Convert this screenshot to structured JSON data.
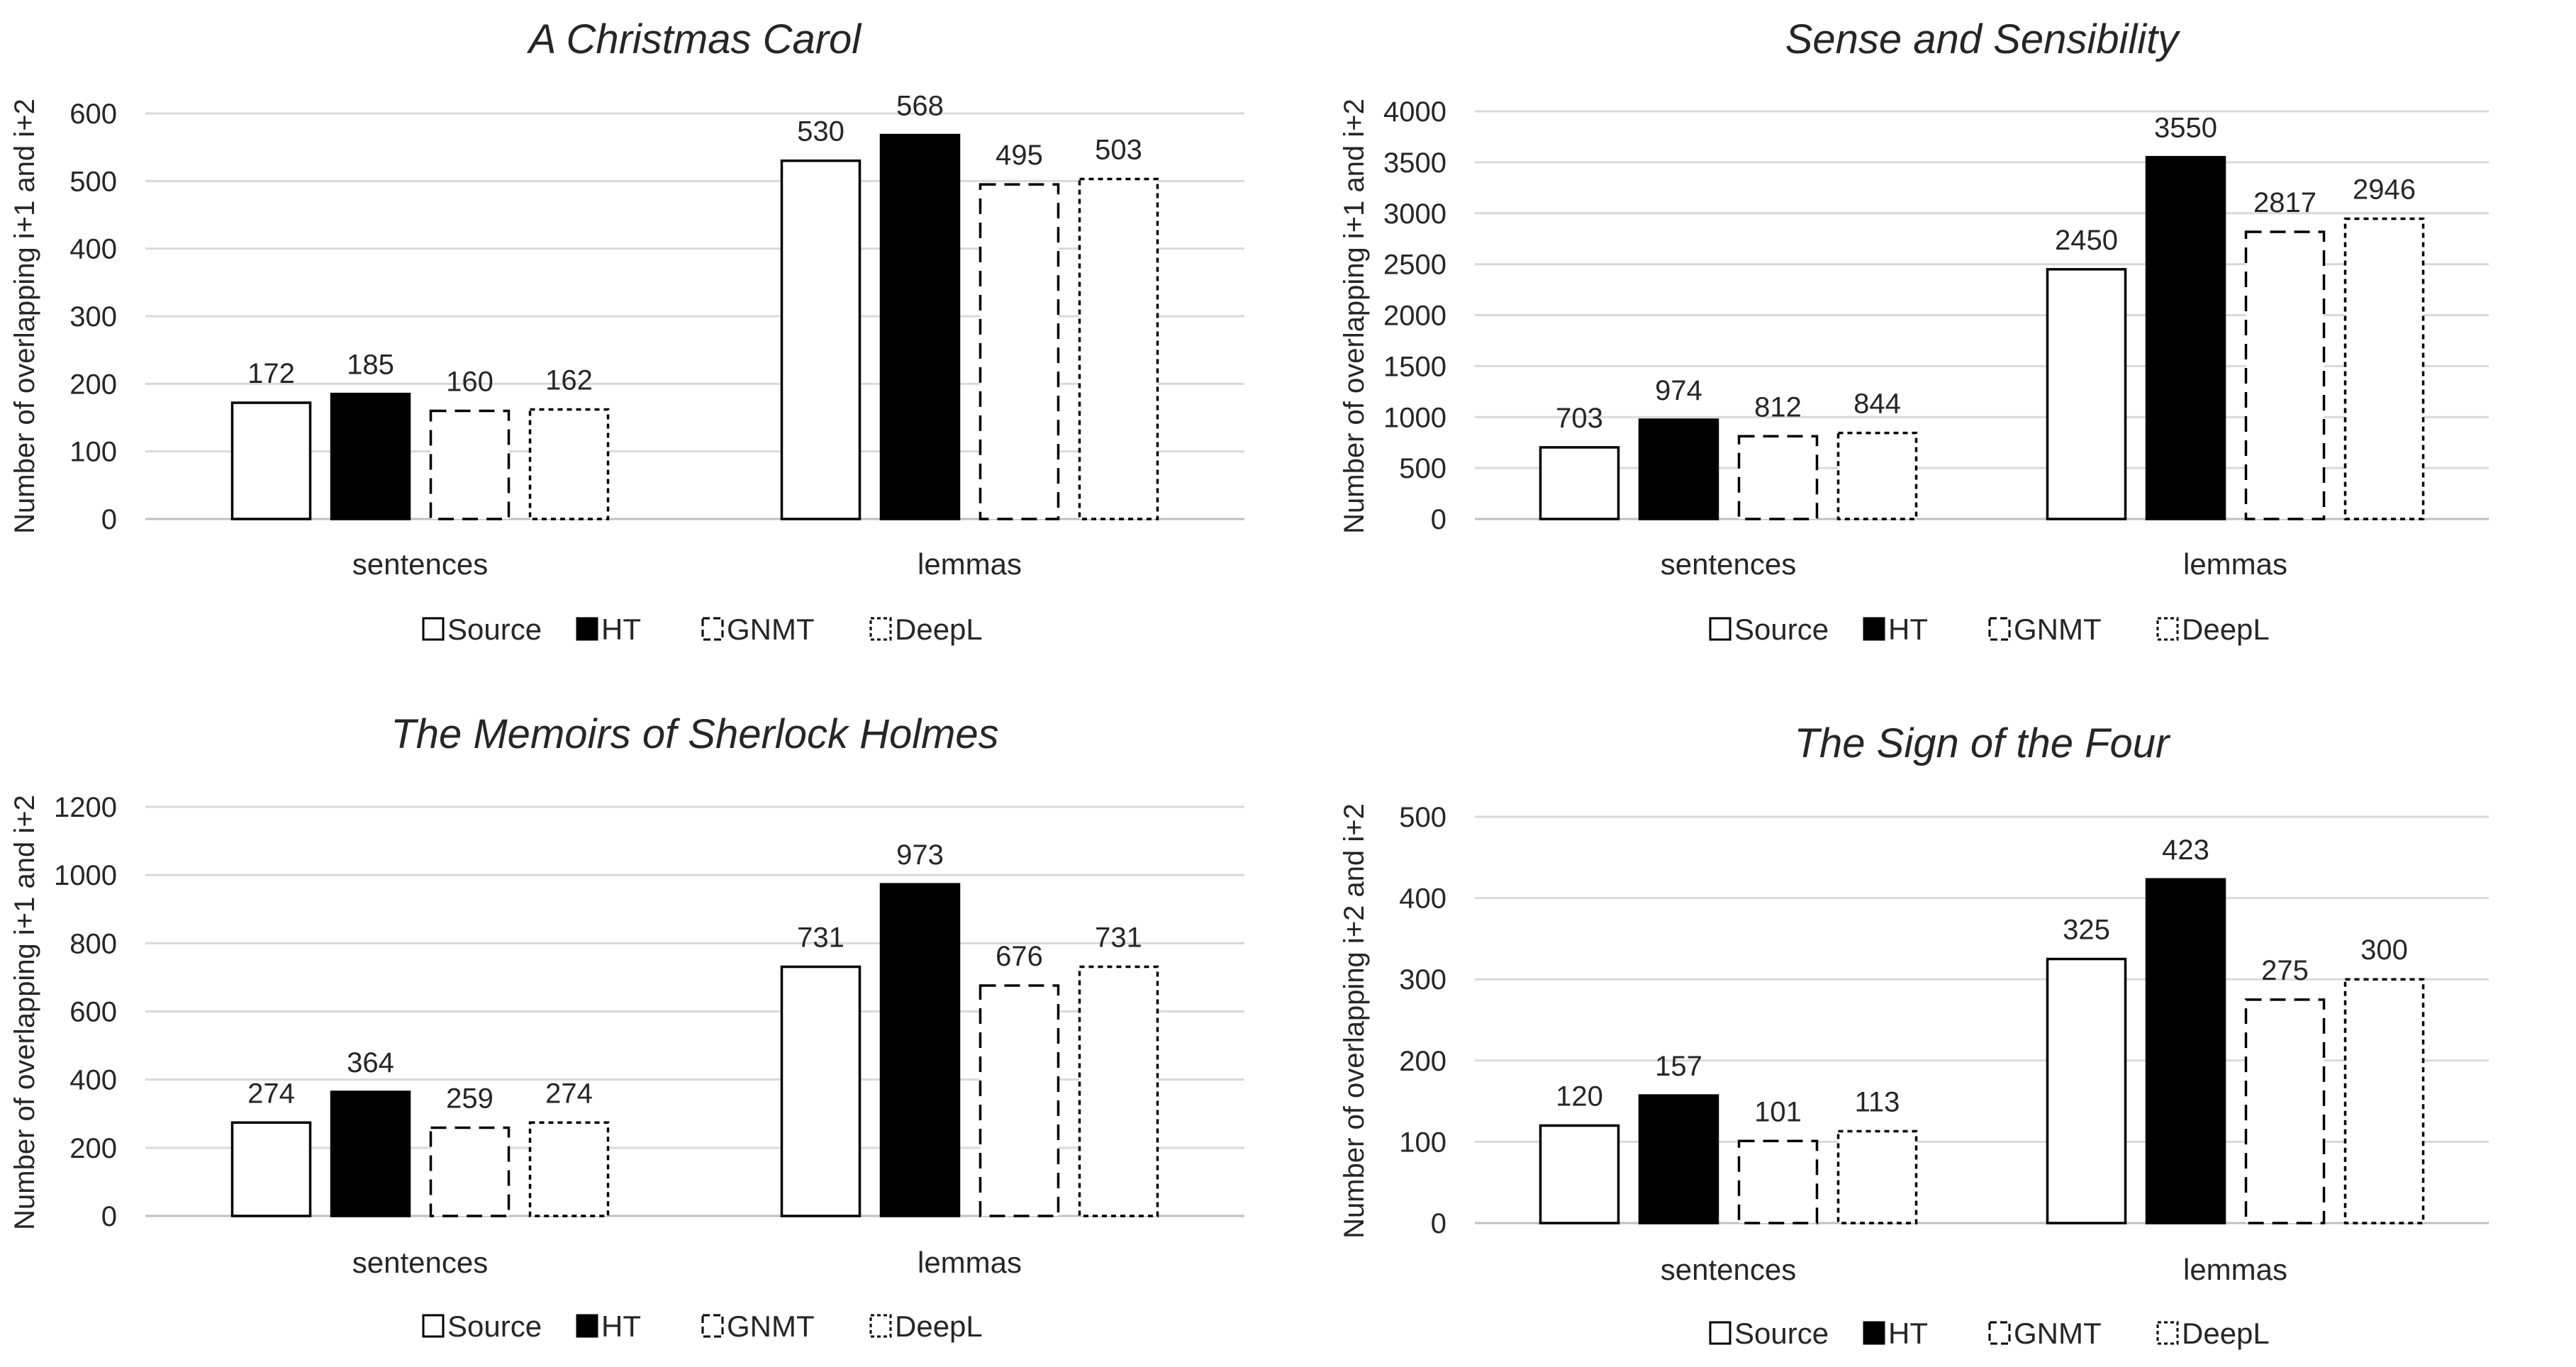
{
  "chart_data": [
    {
      "type": "bar",
      "title": "A Christmas Carol",
      "ylabel": "Number of overlapping i+1 and i+2",
      "xlabel": "",
      "categories": [
        "sentences",
        "lemmas"
      ],
      "ylim": [
        0,
        600
      ],
      "yticks": [
        0,
        100,
        200,
        300,
        400,
        500,
        600
      ],
      "ytick_labels": [
        "0",
        "100",
        "200",
        "300",
        "400",
        "500",
        "600"
      ],
      "grid": true,
      "legend": "bottom",
      "series": [
        {
          "name": "Source",
          "values": [
            172,
            530
          ],
          "labels": [
            "172",
            "530"
          ]
        },
        {
          "name": "HT",
          "values": [
            185,
            568
          ],
          "labels": [
            "185",
            "568"
          ]
        },
        {
          "name": "GNMT",
          "values": [
            160,
            495
          ],
          "labels": [
            "160",
            "495"
          ]
        },
        {
          "name": "DeepL",
          "values": [
            162,
            503
          ],
          "labels": [
            "162",
            "503"
          ]
        }
      ]
    },
    {
      "type": "bar",
      "title": "Sense and Sensibility",
      "ylabel": "Number of overlapping i+1 and i+2",
      "xlabel": "",
      "categories": [
        "sentences",
        "lemmas"
      ],
      "ylim": [
        0,
        4000
      ],
      "yticks": [
        0,
        500,
        1000,
        1500,
        2000,
        2500,
        3000,
        3500,
        4000
      ],
      "ytick_labels": [
        "0",
        "500",
        "1000",
        "1500",
        "2000",
        "2500",
        "3000",
        "3500",
        "4000"
      ],
      "grid": true,
      "legend": "bottom",
      "series": [
        {
          "name": "Source",
          "values": [
            703,
            2450
          ],
          "labels": [
            "703",
            "2450"
          ]
        },
        {
          "name": "HT",
          "values": [
            974,
            3550
          ],
          "labels": [
            "974",
            "3550"
          ]
        },
        {
          "name": "GNMT",
          "values": [
            812,
            2817
          ],
          "labels": [
            "812",
            "2817"
          ]
        },
        {
          "name": "DeepL",
          "values": [
            844,
            2946
          ],
          "labels": [
            "844",
            "2946"
          ]
        }
      ]
    },
    {
      "type": "bar",
      "title": "The Memoirs of Sherlock Holmes",
      "ylabel": "Number of overlapping i+1 and i+2",
      "xlabel": "",
      "categories": [
        "sentences",
        "lemmas"
      ],
      "ylim": [
        0,
        1200
      ],
      "yticks": [
        0,
        200,
        400,
        600,
        800,
        1000,
        1200
      ],
      "ytick_labels": [
        "0",
        "200",
        "400",
        "600",
        "800",
        "1000",
        "1200"
      ],
      "grid": true,
      "legend": "bottom",
      "series": [
        {
          "name": "Source",
          "values": [
            274,
            731
          ],
          "labels": [
            "274",
            "731"
          ]
        },
        {
          "name": "HT",
          "values": [
            364,
            973
          ],
          "labels": [
            "364",
            "973"
          ]
        },
        {
          "name": "GNMT",
          "values": [
            259,
            676
          ],
          "labels": [
            "259",
            "676"
          ]
        },
        {
          "name": "DeepL",
          "values": [
            274,
            731
          ],
          "labels": [
            "274",
            "731"
          ]
        }
      ]
    },
    {
      "type": "bar",
      "title": "The Sign of the Four",
      "ylabel": "Number of overlapping i+2 and i+2",
      "xlabel": "",
      "categories": [
        "sentences",
        "lemmas"
      ],
      "ylim": [
        0,
        500
      ],
      "yticks": [
        0,
        100,
        200,
        300,
        400,
        500
      ],
      "ytick_labels": [
        "0",
        "100",
        "200",
        "300",
        "400",
        "500"
      ],
      "grid": true,
      "legend": "bottom",
      "series": [
        {
          "name": "Source",
          "values": [
            120,
            325
          ],
          "labels": [
            "120",
            "325"
          ]
        },
        {
          "name": "HT",
          "values": [
            157,
            423
          ],
          "labels": [
            "157",
            "423"
          ]
        },
        {
          "name": "GNMT",
          "values": [
            101,
            275
          ],
          "labels": [
            "101",
            "275"
          ]
        },
        {
          "name": "DeepL",
          "values": [
            113,
            300
          ],
          "labels": [
            "113",
            "300"
          ]
        }
      ]
    }
  ]
}
